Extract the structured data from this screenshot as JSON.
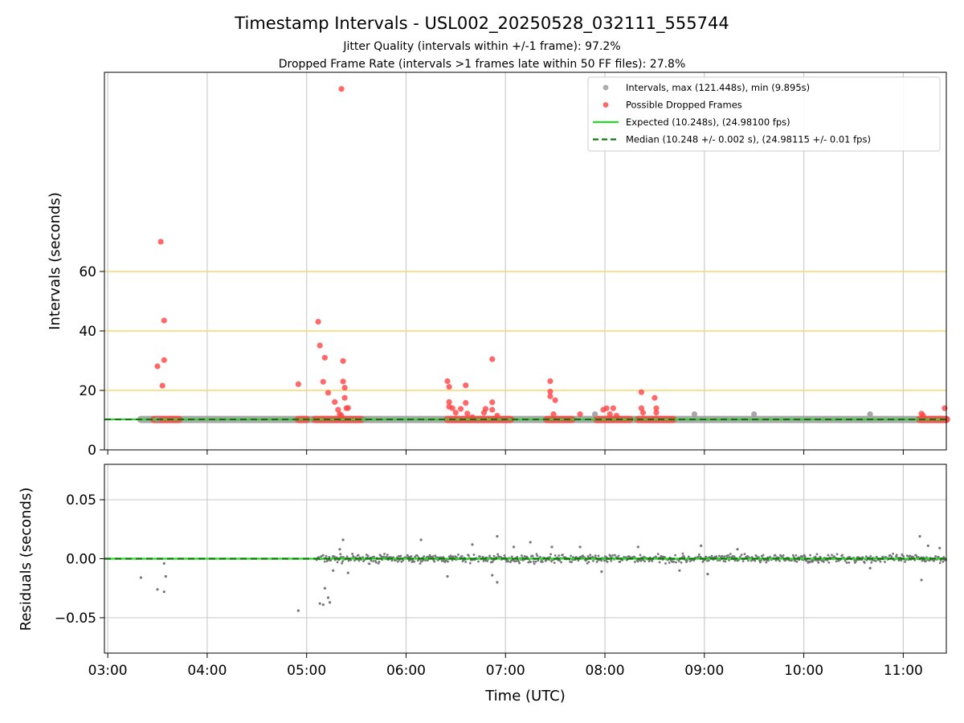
{
  "chart_data": [
    {
      "type": "scatter",
      "title": "Timestamp Intervals - USL002_20250528_032111_555744",
      "subtitle_lines": [
        "Jitter Quality (intervals within +/-1 frame): 97.2%",
        "Dropped Frame Rate (intervals >1 frames late within 50 FF files): 27.8%"
      ],
      "xlabel": "",
      "ylabel": "Intervals (seconds)",
      "xlim": [
        "02:58",
        "11:26"
      ],
      "ylim": [
        0,
        127
      ],
      "yticks": [
        0,
        20,
        40,
        60
      ],
      "xticks": [
        "03:00",
        "04:00",
        "05:00",
        "06:00",
        "07:00",
        "08:00",
        "09:00",
        "10:00",
        "11:00"
      ],
      "grid": true,
      "reference_lines": [
        20,
        40,
        60
      ],
      "reference_line_color": "#f5d76e",
      "legend_position": "top-right",
      "series": [
        {
          "name": "Intervals, max (121.448s), min (9.895s)",
          "color": "#999999",
          "marker": "circle",
          "baseline": {
            "y": 10.248,
            "x_start": "03:20",
            "x_end": "11:26"
          },
          "points": [
            {
              "x": "07:54",
              "y": 12.0
            },
            {
              "x": "08:54",
              "y": 12.0
            },
            {
              "x": "09:30",
              "y": 12.0
            },
            {
              "x": "10:40",
              "y": 12.0
            },
            {
              "x": "03:30",
              "y": 10.2
            },
            {
              "x": "05:35",
              "y": 10.2
            }
          ]
        },
        {
          "name": "Possible Dropped Frames",
          "color": "#ff4444",
          "marker": "circle",
          "clusters": [
            [
              "03:28",
              "03:43"
            ],
            [
              "04:55",
              "05:00"
            ],
            [
              "05:05",
              "05:33"
            ],
            [
              "06:25",
              "07:03"
            ],
            [
              "07:25",
              "07:40"
            ],
            [
              "07:55",
              "08:15"
            ],
            [
              "08:20",
              "08:41"
            ],
            [
              "11:10",
              "11:26"
            ]
          ],
          "points": [
            {
              "x": "03:32",
              "y": 70.0
            },
            {
              "x": "03:34",
              "y": 43.5
            },
            {
              "x": "03:34",
              "y": 30.2
            },
            {
              "x": "03:30",
              "y": 28.1
            },
            {
              "x": "03:33",
              "y": 21.6
            },
            {
              "x": "05:21",
              "y": 121.4
            },
            {
              "x": "04:55",
              "y": 22.1
            },
            {
              "x": "05:07",
              "y": 43.1
            },
            {
              "x": "05:08",
              "y": 35.1
            },
            {
              "x": "05:11",
              "y": 31.0
            },
            {
              "x": "05:10",
              "y": 22.9
            },
            {
              "x": "05:13",
              "y": 19.2
            },
            {
              "x": "05:17",
              "y": 16.1
            },
            {
              "x": "05:19",
              "y": 13.5
            },
            {
              "x": "05:21",
              "y": 11.5
            },
            {
              "x": "05:22",
              "y": 29.9
            },
            {
              "x": "05:22",
              "y": 23.0
            },
            {
              "x": "05:23",
              "y": 20.9
            },
            {
              "x": "05:23",
              "y": 17.5
            },
            {
              "x": "05:24",
              "y": 14.0
            },
            {
              "x": "05:25",
              "y": 14.1
            },
            {
              "x": "05:20",
              "y": 12.0
            },
            {
              "x": "06:25",
              "y": 23.1
            },
            {
              "x": "06:26",
              "y": 21.2
            },
            {
              "x": "06:26",
              "y": 16.1
            },
            {
              "x": "06:26",
              "y": 14.5
            },
            {
              "x": "06:28",
              "y": 14.0
            },
            {
              "x": "06:30",
              "y": 12.5
            },
            {
              "x": "06:33",
              "y": 13.8
            },
            {
              "x": "06:36",
              "y": 21.7
            },
            {
              "x": "06:36",
              "y": 15.8
            },
            {
              "x": "06:37",
              "y": 12.2
            },
            {
              "x": "06:40",
              "y": 11.0
            },
            {
              "x": "06:47",
              "y": 12.5
            },
            {
              "x": "06:48",
              "y": 13.8
            },
            {
              "x": "06:52",
              "y": 30.5
            },
            {
              "x": "06:52",
              "y": 16.0
            },
            {
              "x": "06:52",
              "y": 13.5
            },
            {
              "x": "06:55",
              "y": 11.5
            },
            {
              "x": "07:27",
              "y": 23.1
            },
            {
              "x": "07:27",
              "y": 19.6
            },
            {
              "x": "07:27",
              "y": 18.0
            },
            {
              "x": "07:30",
              "y": 16.7
            },
            {
              "x": "07:29",
              "y": 12.0
            },
            {
              "x": "07:45",
              "y": 12.0
            },
            {
              "x": "07:59",
              "y": 13.5
            },
            {
              "x": "08:01",
              "y": 14.0
            },
            {
              "x": "08:03",
              "y": 12.0
            },
            {
              "x": "08:05",
              "y": 14.0
            },
            {
              "x": "08:07",
              "y": 11.5
            },
            {
              "x": "08:22",
              "y": 19.4
            },
            {
              "x": "08:22",
              "y": 14.0
            },
            {
              "x": "08:23",
              "y": 12.5
            },
            {
              "x": "08:30",
              "y": 17.5
            },
            {
              "x": "08:31",
              "y": 14.0
            },
            {
              "x": "08:31",
              "y": 12.5
            },
            {
              "x": "11:11",
              "y": 12.2
            },
            {
              "x": "11:12",
              "y": 11.5
            },
            {
              "x": "11:25",
              "y": 14.0
            }
          ]
        },
        {
          "name": "Expected (10.248s), (24.98100 fps)",
          "color": "#22dd22",
          "line_style": "solid",
          "y": 10.248
        },
        {
          "name": "Median (10.248 +/- 0.002 s), (24.98115 +/- 0.01 fps)",
          "color": "#117711",
          "line_style": "dashed",
          "y": 10.248
        }
      ]
    },
    {
      "type": "scatter",
      "title": "",
      "xlabel": "Time (UTC)",
      "ylabel": "Residuals (seconds)",
      "xlim": [
        "02:58",
        "11:26"
      ],
      "ylim": [
        -0.08,
        0.08
      ],
      "yticks": [
        0.05,
        0.0,
        -0.05
      ],
      "ytick_labels": [
        "0.05",
        "0.00",
        "−0.05"
      ],
      "xticks": [
        "03:00",
        "04:00",
        "05:00",
        "06:00",
        "07:00",
        "08:00",
        "09:00",
        "10:00",
        "11:00"
      ],
      "grid": true,
      "series": [
        {
          "color": "#777777",
          "marker": "dot",
          "dense_range": {
            "x_start": "05:06",
            "x_end": "11:26",
            "y_spread": 0.005
          },
          "points": [
            {
              "x": "03:20",
              "y": -0.016
            },
            {
              "x": "03:30",
              "y": -0.026
            },
            {
              "x": "03:34",
              "y": -0.028
            },
            {
              "x": "03:35",
              "y": -0.015
            },
            {
              "x": "03:34",
              "y": -0.004
            },
            {
              "x": "04:55",
              "y": -0.044
            },
            {
              "x": "05:08",
              "y": -0.038
            },
            {
              "x": "05:10",
              "y": -0.039
            },
            {
              "x": "05:11",
              "y": -0.025
            },
            {
              "x": "05:13",
              "y": -0.033
            },
            {
              "x": "05:14",
              "y": -0.037
            },
            {
              "x": "05:16",
              "y": -0.01
            },
            {
              "x": "05:20",
              "y": 0.008
            },
            {
              "x": "05:22",
              "y": 0.016
            },
            {
              "x": "05:25",
              "y": -0.012
            },
            {
              "x": "06:09",
              "y": 0.016
            },
            {
              "x": "06:25",
              "y": -0.015
            },
            {
              "x": "06:40",
              "y": 0.012
            },
            {
              "x": "06:52",
              "y": -0.014
            },
            {
              "x": "06:55",
              "y": 0.019
            },
            {
              "x": "06:55",
              "y": -0.02
            },
            {
              "x": "07:05",
              "y": 0.01
            },
            {
              "x": "07:15",
              "y": 0.014
            },
            {
              "x": "07:28",
              "y": 0.01
            },
            {
              "x": "07:45",
              "y": 0.01
            },
            {
              "x": "07:58",
              "y": -0.011
            },
            {
              "x": "08:20",
              "y": 0.01
            },
            {
              "x": "08:45",
              "y": -0.01
            },
            {
              "x": "08:58",
              "y": 0.011
            },
            {
              "x": "09:02",
              "y": -0.013
            },
            {
              "x": "09:20",
              "y": 0.008
            },
            {
              "x": "10:40",
              "y": -0.008
            },
            {
              "x": "11:10",
              "y": 0.019
            },
            {
              "x": "11:11",
              "y": -0.018
            },
            {
              "x": "11:15",
              "y": 0.011
            },
            {
              "x": "11:22",
              "y": 0.009
            }
          ]
        },
        {
          "color": "#22dd22",
          "line_style": "solid",
          "y": 0
        },
        {
          "color": "#117711",
          "line_style": "dashed",
          "y": 0
        }
      ]
    }
  ]
}
